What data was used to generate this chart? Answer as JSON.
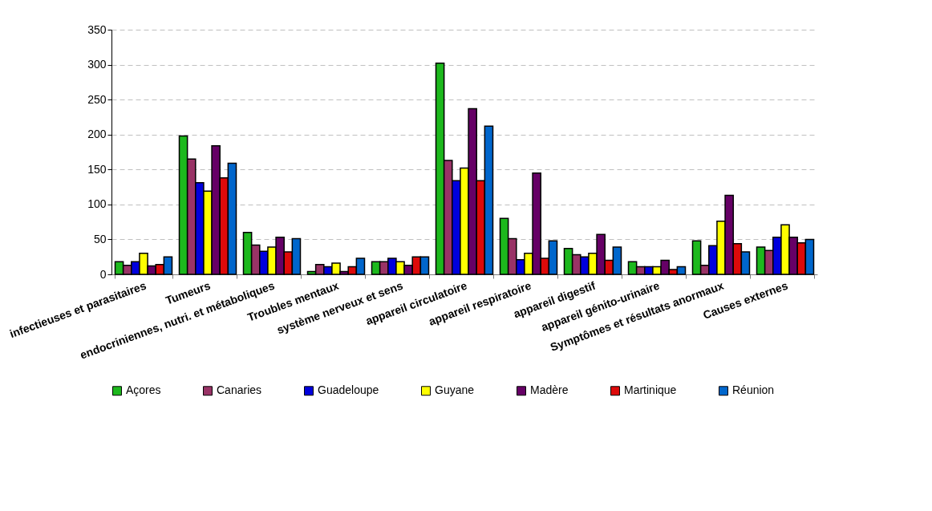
{
  "chart_data": {
    "type": "bar",
    "categories": [
      "infectieuses et parasitaires",
      "Tumeurs",
      "endocriniennes, nutri. et métaboliques",
      "Troubles mentaux",
      "système nerveux et sens",
      "appareil circulatoire",
      "appareil respiratoire",
      "appareil digestif",
      "appareil génito-urinaire",
      "Symptômes et résultats anormaux",
      "Causes externes"
    ],
    "series": [
      {
        "name": "Açores",
        "color": "#1db81d",
        "values": [
          18,
          198,
          60,
          4,
          18,
          302,
          80,
          37,
          18,
          48,
          39
        ]
      },
      {
        "name": "Canaries",
        "color": "#993366",
        "values": [
          13,
          165,
          42,
          14,
          18,
          163,
          51,
          28,
          11,
          13,
          34
        ]
      },
      {
        "name": "Guadeloupe",
        "color": "#0000dd",
        "values": [
          18,
          131,
          33,
          11,
          23,
          134,
          21,
          25,
          11,
          41,
          53
        ]
      },
      {
        "name": "Guyane",
        "color": "#ffff00",
        "values": [
          30,
          119,
          39,
          16,
          18,
          152,
          30,
          30,
          11,
          76,
          71
        ]
      },
      {
        "name": "Madère",
        "color": "#660066",
        "values": [
          12,
          184,
          53,
          4,
          13,
          237,
          145,
          57,
          20,
          113,
          53
        ]
      },
      {
        "name": "Martinique",
        "color": "#dd0a0a",
        "values": [
          14,
          138,
          32,
          11,
          25,
          134,
          23,
          20,
          7,
          44,
          45
        ]
      },
      {
        "name": "Réunion",
        "color": "#0066cc",
        "values": [
          25,
          159,
          51,
          23,
          25,
          212,
          48,
          39,
          11,
          32,
          50
        ]
      }
    ],
    "ylim": [
      0,
      350
    ],
    "yticks": [
      0,
      50,
      100,
      150,
      200,
      250,
      300,
      350
    ],
    "grid": "y",
    "legend": "bottom"
  }
}
